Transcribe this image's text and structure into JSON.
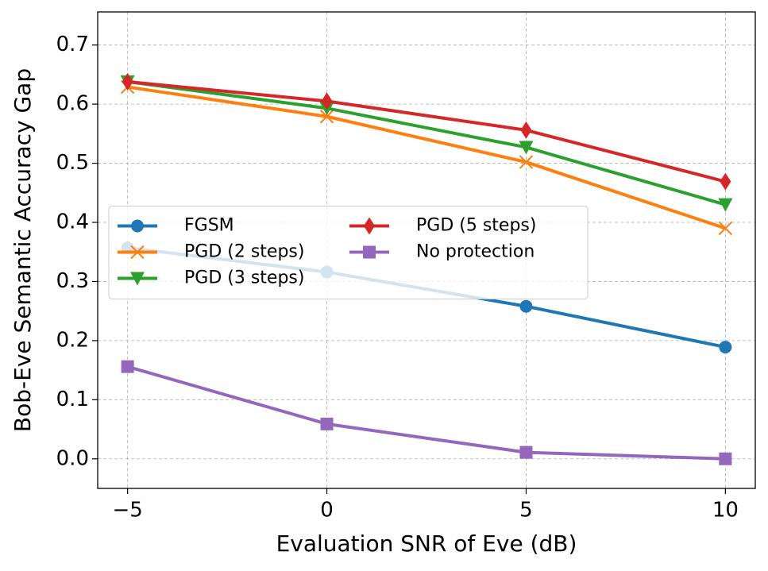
{
  "chart_data": {
    "type": "line",
    "x_label": "Evaluation SNR of Eve (dB)",
    "y_label": "Bob-Eve Semantic Accuracy Gap",
    "x": [
      -5,
      0,
      5,
      10
    ],
    "xlim": [
      -5.75,
      10.75
    ],
    "xticks": [
      {
        "value": -5,
        "label": "−5"
      },
      0,
      5,
      10
    ],
    "ylim": [
      -0.05,
      0.756
    ],
    "yticks": [
      {
        "value": 0,
        "label": "0.0"
      },
      0.1,
      0.2,
      0.3,
      0.4,
      0.5,
      0.6,
      0.7
    ],
    "grid": true,
    "legend": "center left",
    "series": [
      {
        "name": "FGSM",
        "color": "#1f77b4",
        "marker": "circle",
        "values": [
          0.357,
          0.316,
          0.258,
          0.189
        ]
      },
      {
        "name": "PGD (2 steps)",
        "color": "#ff7f0e",
        "marker": "x",
        "values": [
          0.629,
          0.579,
          0.502,
          0.39
        ]
      },
      {
        "name": "PGD (3 steps)",
        "color": "#2ca02c",
        "marker": "triangle-down",
        "values": [
          0.638,
          0.593,
          0.527,
          0.43
        ]
      },
      {
        "name": "PGD (5 steps)",
        "color": "#d62728",
        "marker": "thin-diamond",
        "values": [
          0.638,
          0.605,
          0.556,
          0.469
        ]
      },
      {
        "name": "No protection",
        "color": "#9467bd",
        "marker": "square",
        "values": [
          0.156,
          0.059,
          0.011,
          0.0
        ]
      }
    ]
  }
}
